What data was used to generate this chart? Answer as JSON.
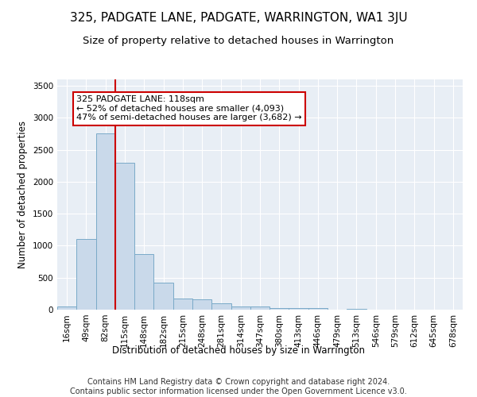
{
  "title": "325, PADGATE LANE, PADGATE, WARRINGTON, WA1 3JU",
  "subtitle": "Size of property relative to detached houses in Warrington",
  "xlabel": "Distribution of detached houses by size in Warrington",
  "ylabel": "Number of detached properties",
  "footer_line1": "Contains HM Land Registry data © Crown copyright and database right 2024.",
  "footer_line2": "Contains public sector information licensed under the Open Government Licence v3.0.",
  "bin_labels": [
    "16sqm",
    "49sqm",
    "82sqm",
    "115sqm",
    "148sqm",
    "182sqm",
    "215sqm",
    "248sqm",
    "281sqm",
    "314sqm",
    "347sqm",
    "380sqm",
    "413sqm",
    "446sqm",
    "479sqm",
    "513sqm",
    "546sqm",
    "579sqm",
    "612sqm",
    "645sqm",
    "678sqm"
  ],
  "bar_values": [
    50,
    1100,
    2750,
    2300,
    870,
    420,
    170,
    165,
    95,
    55,
    55,
    30,
    25,
    25,
    0,
    10,
    0,
    5,
    0,
    0,
    0
  ],
  "bar_color": "#c9d9ea",
  "bar_edge_color": "#7aaac8",
  "vline_x_index": 2.5,
  "vline_color": "#cc0000",
  "annotation_line1": "325 PADGATE LANE: 118sqm",
  "annotation_line2": "← 52% of detached houses are smaller (4,093)",
  "annotation_line3": "47% of semi-detached houses are larger (3,682) →",
  "annotation_box_color": "#ffffff",
  "annotation_box_edge": "#cc0000",
  "ylim": [
    0,
    3600
  ],
  "yticks": [
    0,
    500,
    1000,
    1500,
    2000,
    2500,
    3000,
    3500
  ],
  "plot_bg_color": "#e8eef5",
  "grid_color": "#ffffff",
  "title_fontsize": 11,
  "subtitle_fontsize": 9.5,
  "axis_label_fontsize": 8.5,
  "tick_fontsize": 7.5,
  "footer_fontsize": 7,
  "annotation_fontsize": 8
}
